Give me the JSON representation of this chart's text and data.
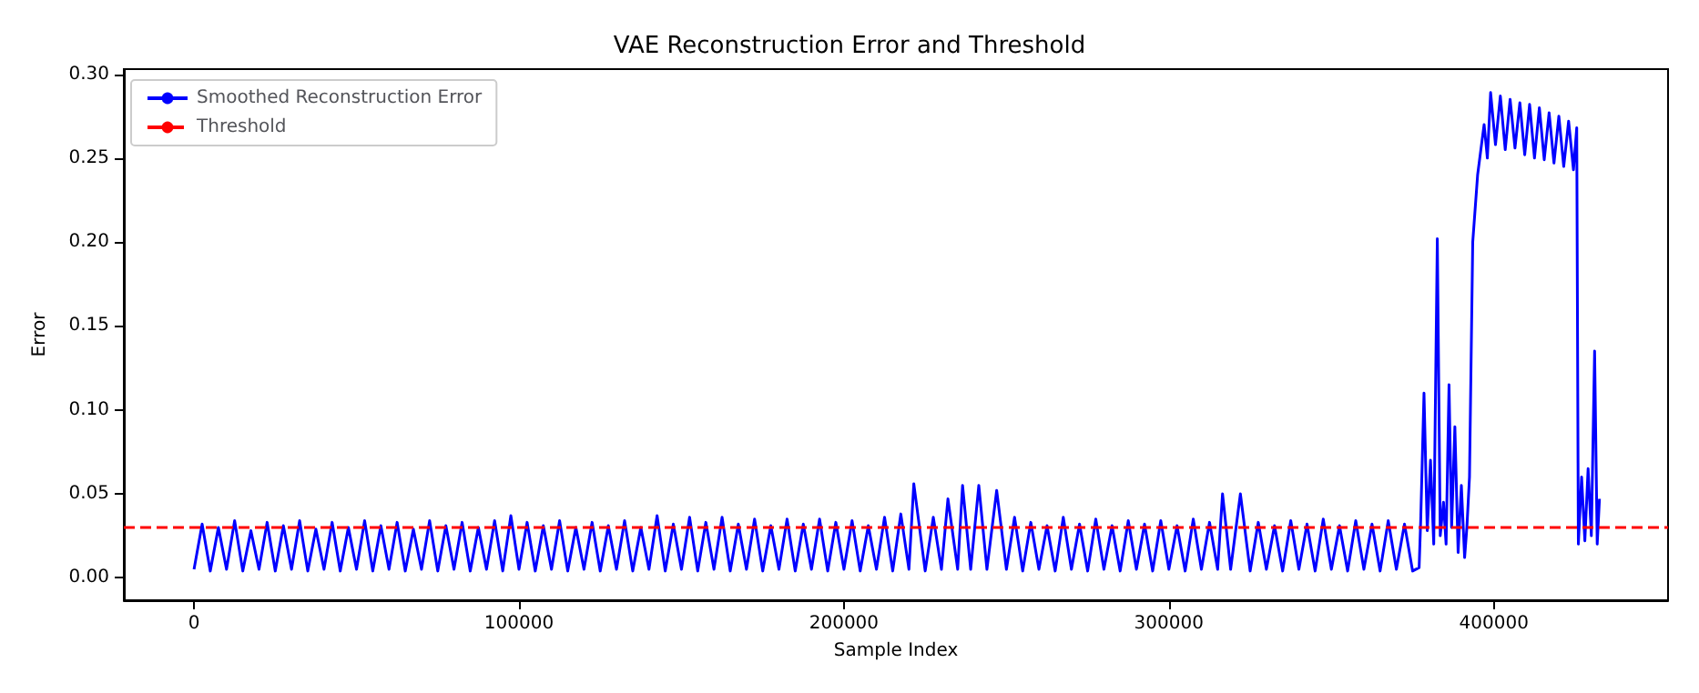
{
  "chart_data": {
    "type": "line",
    "title": "VAE Reconstruction Error and Threshold",
    "xlabel": "Sample Index",
    "ylabel": "Error",
    "xlim": [
      -21600,
      453600
    ],
    "ylim": [
      -0.0134,
      0.303
    ],
    "xticks": [
      0,
      100000,
      200000,
      300000,
      400000
    ],
    "yticks": [
      {
        "value": 0,
        "label": "0.00"
      },
      {
        "value": 0.05,
        "label": "0.05"
      },
      {
        "value": 0.1,
        "label": "0.10"
      },
      {
        "value": 0.15,
        "label": "0.15"
      },
      {
        "value": 0.2,
        "label": "0.20"
      },
      {
        "value": 0.25,
        "label": "0.25"
      },
      {
        "value": 0.3,
        "label": "0.30"
      }
    ],
    "grid": false,
    "legend": "top left",
    "marker": "none",
    "line_style": "solid",
    "series": [
      {
        "name": "Smoothed Reconstruction Error",
        "color": "#0000ff",
        "x": [
          0,
          2500,
          5000,
          7500,
          10000,
          12500,
          15000,
          17500,
          20000,
          22500,
          25000,
          27500,
          30000,
          32500,
          35000,
          37500,
          40000,
          42500,
          45000,
          47500,
          50000,
          52500,
          55000,
          57500,
          60000,
          62500,
          65000,
          67500,
          70000,
          72500,
          75000,
          77500,
          80000,
          82500,
          85000,
          87500,
          90000,
          92500,
          95000,
          97500,
          100000,
          102500,
          105000,
          107500,
          110000,
          112500,
          115000,
          117500,
          120000,
          122500,
          125000,
          127500,
          130000,
          132500,
          135000,
          137500,
          140000,
          142500,
          145000,
          147500,
          150000,
          152500,
          155000,
          157500,
          160000,
          162500,
          165000,
          167500,
          170000,
          172500,
          175000,
          177500,
          180000,
          182500,
          185000,
          187500,
          190000,
          192500,
          195000,
          197500,
          200000,
          202500,
          205000,
          207500,
          210000,
          212500,
          215000,
          217500,
          220000,
          221500,
          225000,
          227500,
          230000,
          232000,
          235000,
          236500,
          239000,
          241500,
          244000,
          247000,
          250000,
          252500,
          255000,
          257500,
          260000,
          262500,
          265000,
          267500,
          270000,
          272500,
          275000,
          277500,
          280000,
          282500,
          285000,
          287500,
          290000,
          292500,
          295000,
          297500,
          300000,
          302500,
          305000,
          307500,
          310000,
          312500,
          315000,
          316500,
          319000,
          322000,
          325000,
          327500,
          330000,
          332500,
          335000,
          337500,
          340000,
          342500,
          345000,
          347500,
          350000,
          352500,
          355000,
          357500,
          360000,
          362500,
          365000,
          367500,
          370000,
          372500,
          375000,
          377000,
          377500,
          378500,
          379500,
          380500,
          381500,
          382600,
          383500,
          384500,
          385300,
          386200,
          387000,
          388000,
          389000,
          390000,
          391000,
          391700,
          392500,
          393500,
          395000,
          397000,
          398000,
          399000,
          400500,
          402000,
          403500,
          405000,
          406500,
          408000,
          409500,
          411000,
          412500,
          414000,
          415500,
          417000,
          418500,
          420000,
          421500,
          423000,
          424500,
          425500,
          426000,
          427000,
          428000,
          429000,
          430000,
          431000,
          431800,
          432500
        ],
        "values": [
          0.005,
          0.032,
          0.004,
          0.03,
          0.005,
          0.034,
          0.004,
          0.028,
          0.005,
          0.033,
          0.004,
          0.031,
          0.005,
          0.034,
          0.004,
          0.029,
          0.005,
          0.033,
          0.004,
          0.03,
          0.005,
          0.034,
          0.004,
          0.031,
          0.005,
          0.033,
          0.004,
          0.029,
          0.005,
          0.034,
          0.004,
          0.031,
          0.005,
          0.033,
          0.004,
          0.03,
          0.005,
          0.034,
          0.004,
          0.037,
          0.005,
          0.033,
          0.004,
          0.031,
          0.005,
          0.034,
          0.004,
          0.03,
          0.005,
          0.033,
          0.004,
          0.031,
          0.005,
          0.034,
          0.004,
          0.03,
          0.005,
          0.037,
          0.004,
          0.032,
          0.005,
          0.036,
          0.004,
          0.033,
          0.005,
          0.036,
          0.004,
          0.032,
          0.005,
          0.035,
          0.004,
          0.031,
          0.005,
          0.035,
          0.004,
          0.032,
          0.005,
          0.035,
          0.004,
          0.033,
          0.005,
          0.034,
          0.004,
          0.031,
          0.005,
          0.036,
          0.004,
          0.038,
          0.005,
          0.056,
          0.004,
          0.036,
          0.005,
          0.047,
          0.005,
          0.055,
          0.005,
          0.055,
          0.005,
          0.052,
          0.005,
          0.036,
          0.004,
          0.033,
          0.005,
          0.031,
          0.004,
          0.036,
          0.005,
          0.032,
          0.004,
          0.035,
          0.005,
          0.031,
          0.004,
          0.034,
          0.005,
          0.032,
          0.004,
          0.034,
          0.005,
          0.031,
          0.004,
          0.035,
          0.005,
          0.033,
          0.005,
          0.05,
          0.005,
          0.05,
          0.004,
          0.033,
          0.005,
          0.031,
          0.004,
          0.034,
          0.005,
          0.032,
          0.004,
          0.035,
          0.005,
          0.031,
          0.004,
          0.034,
          0.005,
          0.032,
          0.004,
          0.034,
          0.005,
          0.032,
          0.004,
          0.006,
          0.035,
          0.11,
          0.028,
          0.07,
          0.02,
          0.202,
          0.025,
          0.045,
          0.02,
          0.115,
          0.03,
          0.09,
          0.015,
          0.055,
          0.012,
          0.03,
          0.06,
          0.2,
          0.24,
          0.27,
          0.25,
          0.289,
          0.258,
          0.287,
          0.255,
          0.285,
          0.256,
          0.283,
          0.252,
          0.282,
          0.25,
          0.28,
          0.249,
          0.277,
          0.247,
          0.275,
          0.245,
          0.272,
          0.243,
          0.268,
          0.02,
          0.06,
          0.022,
          0.065,
          0.025,
          0.135,
          0.02,
          0.047
        ]
      }
    ],
    "ref_lines": [
      {
        "axis": "y",
        "value": 0.03,
        "label": "Threshold",
        "color": "#ff0000",
        "line_style": "dashed"
      }
    ]
  }
}
